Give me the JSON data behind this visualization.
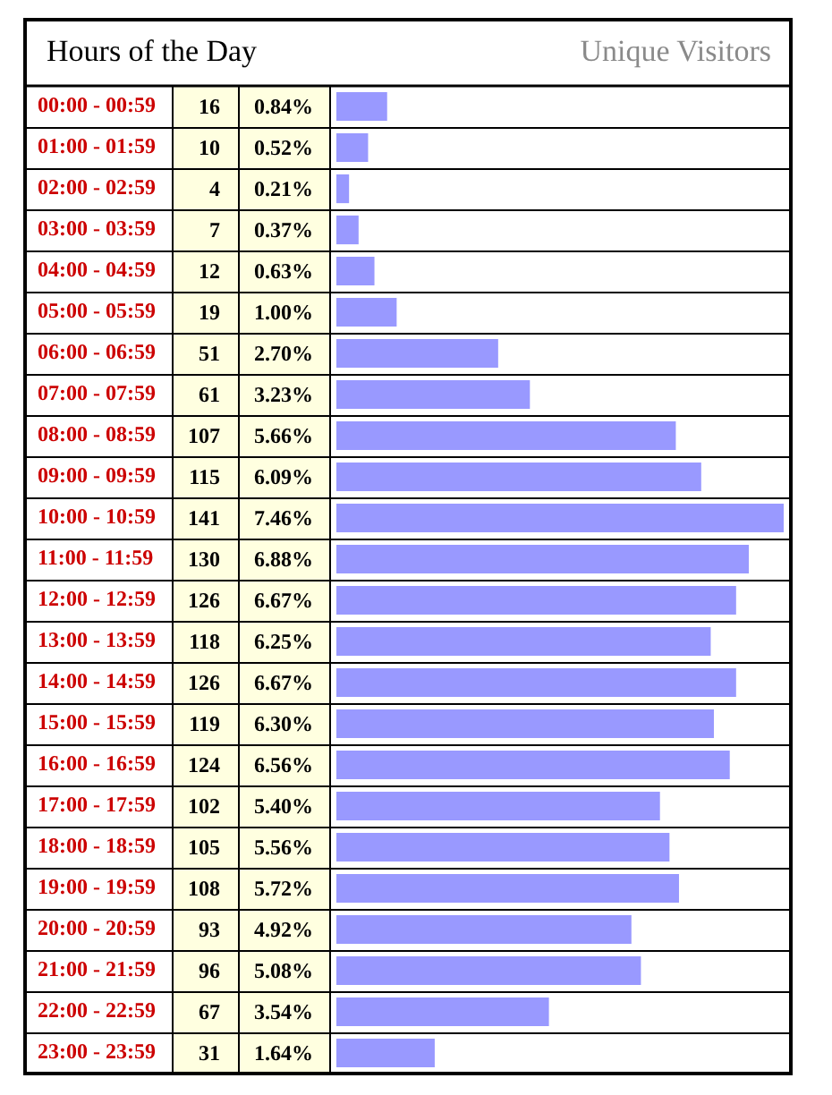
{
  "chart_data": {
    "type": "bar",
    "orientation": "horizontal",
    "title": "Hours of the Day",
    "xlabel": "Unique Visitors",
    "categories": [
      "00:00 - 00:59",
      "01:00 - 01:59",
      "02:00 - 02:59",
      "03:00 - 03:59",
      "04:00 - 04:59",
      "05:00 - 05:59",
      "06:00 - 06:59",
      "07:00 - 07:59",
      "08:00 - 08:59",
      "09:00 - 09:59",
      "10:00 - 10:59",
      "11:00 - 11:59",
      "12:00 - 12:59",
      "13:00 - 13:59",
      "14:00 - 14:59",
      "15:00 - 15:59",
      "16:00 - 16:59",
      "17:00 - 17:59",
      "18:00 - 18:59",
      "19:00 - 19:59",
      "20:00 - 20:59",
      "21:00 - 21:59",
      "22:00 - 22:59",
      "23:00 - 23:59"
    ],
    "values": [
      16,
      10,
      4,
      7,
      12,
      19,
      51,
      61,
      107,
      115,
      141,
      130,
      126,
      118,
      126,
      119,
      124,
      102,
      105,
      108,
      93,
      96,
      67,
      31
    ],
    "color": "#9999ff",
    "data_labels": true,
    "annotations": [
      "0.84%",
      "0.52%",
      "0.21%",
      "0.37%",
      "0.63%",
      "1.00%",
      "2.70%",
      "3.23%",
      "5.66%",
      "6.09%",
      "7.46%",
      "6.88%",
      "6.67%",
      "6.25%",
      "6.67%",
      "6.30%",
      "6.56%",
      "5.40%",
      "5.56%",
      "5.72%",
      "4.92%",
      "5.08%",
      "3.54%",
      "1.64%"
    ]
  }
}
